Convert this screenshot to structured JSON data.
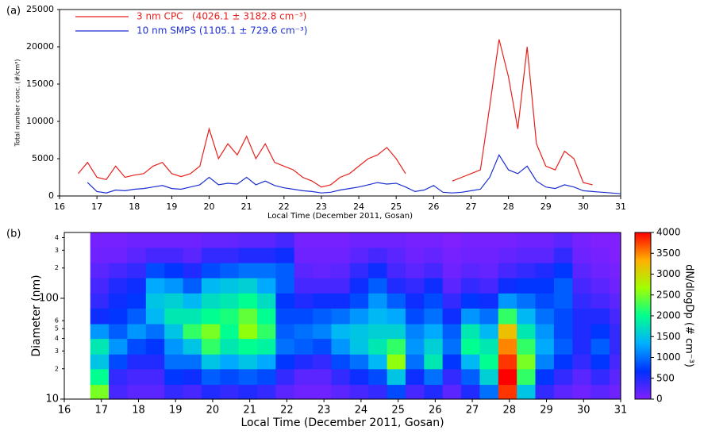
{
  "chart_data": [
    {
      "type": "line",
      "panel_label": "(a)",
      "ylabel": "Total number conc. (#/cm³)",
      "xlabel": "Local Time (December 2011, Gosan)",
      "xlim": [
        16,
        31
      ],
      "xticks": [
        16,
        17,
        18,
        19,
        20,
        21,
        22,
        23,
        24,
        25,
        26,
        27,
        28,
        29,
        30,
        31
      ],
      "ylim": [
        0,
        25000
      ],
      "yticks": [
        0,
        5000,
        10000,
        15000,
        20000,
        25000
      ],
      "legend": "upper left",
      "x": [
        16.5,
        16.75,
        17,
        17.25,
        17.5,
        17.75,
        18,
        18.25,
        18.5,
        18.75,
        19,
        19.25,
        19.5,
        19.75,
        20,
        20.25,
        20.5,
        20.75,
        21,
        21.25,
        21.5,
        21.75,
        22,
        22.25,
        22.5,
        22.75,
        23,
        23.25,
        23.5,
        23.75,
        24,
        24.25,
        24.5,
        24.75,
        25,
        25.25,
        25.5,
        25.75,
        26,
        26.25,
        26.5,
        26.75,
        27,
        27.25,
        27.5,
        27.75,
        28,
        28.25,
        28.5,
        28.75,
        29,
        29.25,
        29.5,
        29.75,
        30,
        30.25,
        30.5,
        30.75,
        31
      ],
      "series": [
        {
          "name": "3 nm CPC   (4026.1 ± 3182.8 cm⁻³)",
          "color": "#e8201c",
          "values": [
            3000,
            4500,
            2500,
            2200,
            4000,
            2500,
            2800,
            3000,
            4000,
            4500,
            3000,
            2600,
            3000,
            4000,
            9000,
            5000,
            7000,
            5500,
            8000,
            5000,
            7000,
            4500,
            4000,
            3500,
            2500,
            2000,
            1200,
            1500,
            2500,
            3000,
            4000,
            5000,
            5500,
            6500,
            5000,
            3000,
            null,
            null,
            null,
            null,
            2000,
            2500,
            3000,
            3500,
            12000,
            21000,
            16000,
            9000,
            20000,
            7000,
            4000,
            3500,
            6000,
            5000,
            1800,
            1500,
            null,
            null,
            null
          ]
        },
        {
          "name": "10 nm SMPS (1105.1 ± 729.6 cm⁻³)",
          "color": "#1c2fd0",
          "values": [
            null,
            1800,
            600,
            400,
            800,
            700,
            900,
            1000,
            1200,
            1400,
            1000,
            900,
            1200,
            1500,
            2500,
            1500,
            1700,
            1600,
            2500,
            1500,
            2000,
            1400,
            1100,
            900,
            700,
            600,
            400,
            500,
            800,
            1000,
            1200,
            1500,
            1800,
            1600,
            1700,
            1200,
            600,
            800,
            1400,
            500,
            400,
            500,
            700,
            900,
            2500,
            5500,
            3500,
            3000,
            4000,
            2000,
            1200,
            1000,
            1500,
            1200,
            700,
            600,
            500,
            400,
            300
          ]
        }
      ]
    },
    {
      "type": "heatmap",
      "panel_label": "(b)",
      "ylabel": "Diameter (nm)",
      "xlabel": "Local Time (December 2011, Gosan)",
      "colorbar_label": "dN/dlogDp (# cm⁻³)",
      "xlim": [
        16,
        31
      ],
      "xticks": [
        16,
        17,
        18,
        19,
        20,
        21,
        22,
        23,
        24,
        25,
        26,
        27,
        28,
        29,
        30,
        31
      ],
      "ylim": [
        10,
        450
      ],
      "log_y": true,
      "yticks": [
        10,
        {
          "value": 20,
          "label": "2"
        },
        {
          "value": 30,
          "label": "3"
        },
        {
          "value": 40,
          "label": "4"
        },
        {
          "value": 50,
          "label": "5"
        },
        {
          "value": 60,
          "label": "6"
        },
        100,
        {
          "value": 200,
          "label": "2"
        },
        {
          "value": 300,
          "label": "3"
        },
        {
          "value": 400,
          "label": "4"
        }
      ],
      "zlim": [
        0,
        4000
      ],
      "zticks": [
        0,
        500,
        1000,
        1500,
        2000,
        2500,
        3000,
        3500,
        4000
      ],
      "colors": [
        "#8020ff",
        "#0030ff",
        "#00b0ff",
        "#00ff90",
        "#a0ff00",
        "#ffb000",
        "#ff0000"
      ],
      "xbins": [
        16.7,
        17.2,
        17.7,
        18.2,
        18.7,
        19.2,
        19.7,
        20.2,
        20.7,
        21.2,
        21.7,
        22.2,
        22.7,
        23.2,
        23.7,
        24.2,
        24.7,
        25.2,
        25.7,
        26.2,
        26.7,
        27.2,
        27.7,
        28.2,
        28.7,
        29.2,
        29.7,
        30.2,
        30.7,
        31.0
      ],
      "ybins": [
        10,
        14,
        20,
        28,
        40,
        56,
        80,
        113,
        160,
        226,
        320,
        450
      ],
      "z": [
        [
          2500,
          2000,
          1500,
          1800,
          1200,
          600,
          400,
          300,
          200,
          100,
          50
        ],
        [
          300,
          400,
          800,
          1200,
          900,
          700,
          600,
          500,
          300,
          100,
          50
        ],
        [
          200,
          300,
          500,
          800,
          1200,
          900,
          700,
          600,
          400,
          200,
          100
        ],
        [
          200,
          300,
          500,
          700,
          1000,
          1400,
          1500,
          1300,
          800,
          300,
          100
        ],
        [
          400,
          700,
          1000,
          1200,
          1500,
          1800,
          1600,
          1200,
          700,
          300,
          100
        ],
        [
          300,
          600,
          1000,
          1500,
          2200,
          1800,
          1400,
          900,
          500,
          200,
          100
        ],
        [
          500,
          900,
          1500,
          2200,
          2500,
          2000,
          1700,
          1400,
          800,
          400,
          150
        ],
        [
          400,
          800,
          1300,
          1800,
          2000,
          2100,
          1800,
          1500,
          900,
          400,
          150
        ],
        [
          500,
          900,
          1500,
          2000,
          2600,
          2400,
          2000,
          1600,
          1000,
          500,
          200
        ],
        [
          400,
          800,
          1300,
          1900,
          2200,
          2000,
          1700,
          1300,
          1000,
          500,
          200
        ],
        [
          200,
          400,
          700,
          1000,
          900,
          800,
          700,
          900,
          900,
          600,
          300
        ],
        [
          100,
          200,
          500,
          900,
          1000,
          800,
          500,
          300,
          200,
          100,
          50
        ],
        [
          100,
          200,
          400,
          800,
          1100,
          900,
          600,
          300,
          150,
          100,
          50
        ],
        [
          200,
          400,
          800,
          1200,
          1400,
          1000,
          600,
          300,
          200,
          100,
          50
        ],
        [
          300,
          600,
          1000,
          1500,
          1500,
          1200,
          800,
          600,
          400,
          200,
          100
        ],
        [
          400,
          800,
          1400,
          1800,
          1600,
          1400,
          1200,
          900,
          600,
          300,
          100
        ],
        [
          800,
          1500,
          2600,
          2200,
          1600,
          1300,
          900,
          500,
          300,
          200,
          100
        ],
        [
          300,
          600,
          1000,
          1200,
          1100,
          800,
          600,
          400,
          200,
          100,
          50
        ],
        [
          500,
          1000,
          1800,
          1600,
          1300,
          1000,
          800,
          600,
          300,
          150,
          50
        ],
        [
          200,
          400,
          700,
          1000,
          900,
          600,
          400,
          200,
          100,
          50,
          0
        ],
        [
          500,
          900,
          1400,
          2000,
          1800,
          1200,
          700,
          400,
          200,
          100,
          50
        ],
        [
          1000,
          1600,
          2000,
          1800,
          1400,
          1000,
          600,
          300,
          150,
          100,
          50
        ],
        [
          3800,
          4000,
          3800,
          3500,
          3200,
          2200,
          1200,
          600,
          300,
          150,
          50
        ],
        [
          1500,
          2200,
          2500,
          2200,
          1800,
          1400,
          1000,
          700,
          400,
          200,
          100
        ],
        [
          400,
          700,
          1100,
          1300,
          1200,
          1000,
          800,
          700,
          500,
          200,
          100
        ],
        [
          200,
          400,
          700,
          900,
          800,
          800,
          900,
          900,
          700,
          400,
          200
        ],
        [
          100,
          200,
          400,
          500,
          500,
          500,
          400,
          300,
          200,
          100,
          50
        ],
        [
          200,
          400,
          700,
          900,
          700,
          500,
          300,
          200,
          100,
          50,
          0
        ],
        [
          100,
          200,
          300,
          400,
          400,
          300,
          200,
          100,
          50,
          0,
          0
        ]
      ]
    }
  ]
}
